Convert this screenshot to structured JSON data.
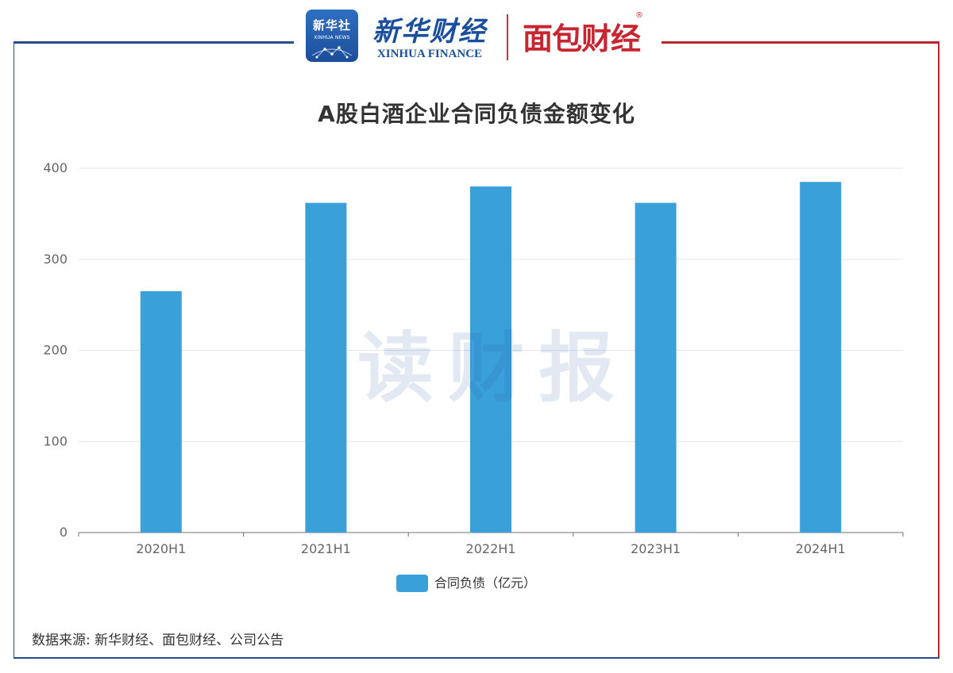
{
  "logos": {
    "xinhua_she": {
      "cn": "新华社",
      "en": "XINHUA NEWS"
    },
    "xinhua_finance": {
      "cn": "新华财经",
      "en": "XINHUA FINANCE"
    },
    "mianbao": {
      "cn": "面包财经",
      "reg": "®"
    }
  },
  "watermark": "读财报",
  "source": "数据来源: 新华财经、面包财经、公司公告",
  "colors": {
    "bar": "#3aa0da",
    "frame_left": "#2b4a8b",
    "frame_right": "#b4282e"
  },
  "chart_data": {
    "type": "bar",
    "title": "A股白酒企业合同负债金额变化",
    "categories": [
      "2020H1",
      "2021H1",
      "2022H1",
      "2023H1",
      "2024H1"
    ],
    "series": [
      {
        "name": "合同负债（亿元）",
        "values": [
          265,
          362,
          380,
          362,
          385
        ]
      }
    ],
    "xlabel": "",
    "ylabel": "",
    "ylim": [
      0,
      400
    ],
    "yticks": [
      0,
      100,
      200,
      300,
      400
    ],
    "grid": true,
    "legend": "bottom-center"
  }
}
